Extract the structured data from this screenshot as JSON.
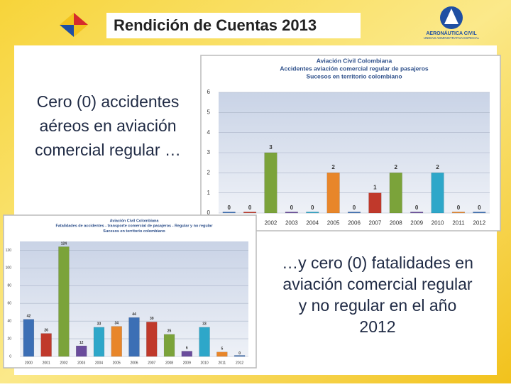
{
  "header": {
    "title": "Rendición de Cuentas 2013",
    "logo_name": "AERONÁUTICA CIVIL",
    "logo_sub": "UNIDAD ADMINISTRATIVA ESPECIAL"
  },
  "texts": [
    "Cero (0) accidentes aéreos en aviación comercial regular …",
    "…y cero (0) fatalidades en aviación comercial regular y no regular en el año 2012"
  ],
  "chart_data": [
    {
      "type": "bar",
      "title": [
        "Aviación Civil Colombiana",
        "Accidentes aviación comercial regular de pasajeros",
        "Sucesos en territorio colombiano"
      ],
      "categories": [
        null,
        null,
        "2002",
        "2003",
        "2004",
        "2005",
        "2006",
        "2007",
        "2008",
        "2009",
        "2010",
        "2011",
        "2012"
      ],
      "values": [
        0,
        0,
        3,
        0,
        0,
        2,
        0,
        1,
        2,
        0,
        2,
        0,
        0
      ],
      "colors": [
        "#3c6fb5",
        "#c0392b",
        "#7ba33a",
        "#6a4c9c",
        "#2ea7c9",
        "#e8862a",
        "#3c6fb5",
        "#c0392b",
        "#7ba33a",
        "#6a4c9c",
        "#2ea7c9",
        "#e8862a",
        "#3c6fb5"
      ],
      "ylim": [
        0,
        6
      ],
      "yticks": [
        0,
        1,
        2,
        3,
        4,
        5,
        6
      ],
      "grid": true
    },
    {
      "type": "bar",
      "title": [
        "Aviación Civil Colombiana",
        "Fatalidades de accidentes - transporte comercial de pasajeros - Regular y no regular",
        "Sucesos en territorio colombiano"
      ],
      "categories": [
        "2000",
        "2001",
        "2002",
        "2003",
        "2004",
        "2005",
        "2006",
        "2007",
        "2008",
        "2009",
        "2010",
        "2011",
        "2012"
      ],
      "values": [
        42,
        26,
        124,
        12,
        33,
        34,
        44,
        39,
        25,
        6,
        33,
        5,
        0
      ],
      "colors": [
        "#3c6fb5",
        "#c0392b",
        "#7ba33a",
        "#6a4c9c",
        "#2ea7c9",
        "#e8862a",
        "#3c6fb5",
        "#c0392b",
        "#7ba33a",
        "#6a4c9c",
        "#2ea7c9",
        "#e8862a",
        "#3c6fb5"
      ],
      "ylim": [
        0,
        130
      ],
      "yticks": [
        0,
        20,
        40,
        60,
        80,
        100,
        120
      ],
      "grid": true
    }
  ]
}
